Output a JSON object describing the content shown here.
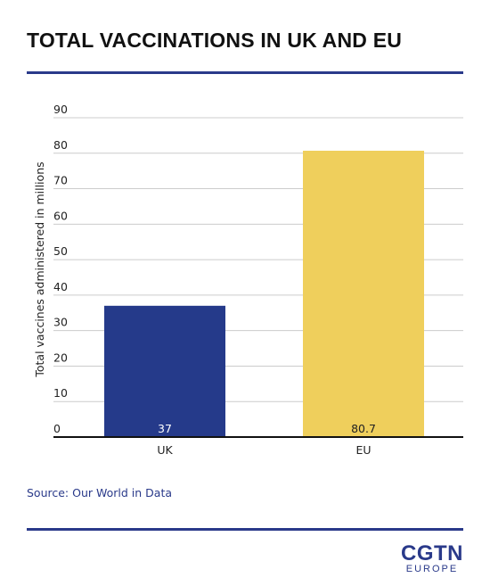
{
  "title": "TOTAL VACCINATIONS IN UK AND EU",
  "source": "Source: Our World in Data",
  "logo": {
    "main": "CGTN",
    "sub": "EUROPE"
  },
  "colors": {
    "rule": "#2a3a8a",
    "uk_bar": "#253a8a",
    "eu_bar": "#efcf5c"
  },
  "chart_data": {
    "type": "bar",
    "categories": [
      "UK",
      "EU"
    ],
    "values": [
      37,
      80.7
    ],
    "value_labels": [
      "37",
      "80.7"
    ],
    "ylabel": "Total vaccines administered in millions",
    "xlabel": "",
    "ylim": [
      0,
      90
    ],
    "yticks": [
      0,
      10,
      20,
      30,
      40,
      50,
      60,
      70,
      80,
      90
    ],
    "grid": true,
    "legend": "none"
  }
}
